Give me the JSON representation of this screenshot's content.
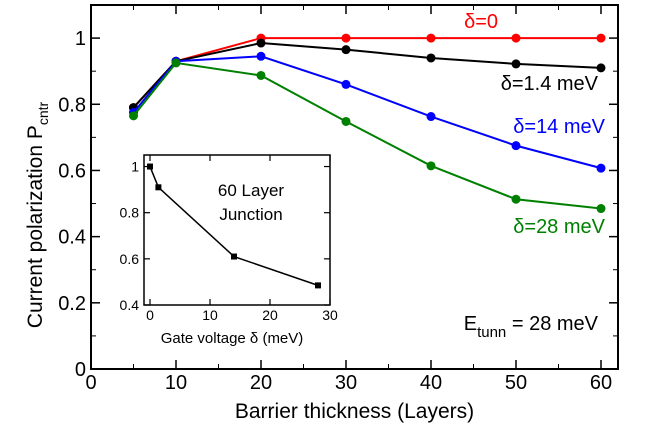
{
  "chart_data": [
    {
      "type": "line",
      "xlabel": "Barrier thickness (Layers)",
      "ylabel_main": "Current polarization  P",
      "ylabel_sub": "cntr",
      "xlim": [
        0,
        62
      ],
      "ylim": [
        0,
        1.1
      ],
      "x": [
        5,
        10,
        20,
        30,
        40,
        50,
        60
      ],
      "xticks": [
        "0",
        "10",
        "20",
        "30",
        "40",
        "50",
        "60"
      ],
      "yticks": [
        "0",
        "0.2",
        "0.4",
        "0.6",
        "0.8",
        "1"
      ],
      "grid": false,
      "series": [
        {
          "name": "δ=0",
          "color": "#ff0000",
          "values": [
            0.79,
            0.93,
            1.0,
            1.0,
            1.0,
            1.0,
            1.0
          ]
        },
        {
          "name": "δ=1.4 meV",
          "color": "#000000",
          "values": [
            0.79,
            0.93,
            0.985,
            0.965,
            0.94,
            0.922,
            0.91
          ]
        },
        {
          "name": "δ=14 meV",
          "color": "#0000ff",
          "values": [
            0.775,
            0.93,
            0.945,
            0.86,
            0.763,
            0.675,
            0.607
          ]
        },
        {
          "name": "δ=28 meV",
          "color": "#008000",
          "values": [
            0.765,
            0.925,
            0.887,
            0.748,
            0.614,
            0.513,
            0.485
          ]
        }
      ],
      "annotation_main": "E",
      "annotation_sub": "tunn",
      "annotation_rest": " = 28 meV"
    },
    {
      "type": "line",
      "xlabel": "Gate voltage δ (meV)",
      "ylabel": "",
      "xlim": [
        -1,
        30
      ],
      "ylim": [
        0.4,
        1.05
      ],
      "x": [
        0,
        1.4,
        14,
        28
      ],
      "xticks": [
        "0",
        "10",
        "20",
        "30"
      ],
      "yticks": [
        "0.4",
        "0.6",
        "0.8",
        "1"
      ],
      "series": [
        {
          "name": "",
          "color": "#000000",
          "values": [
            1.0,
            0.91,
            0.61,
            0.485
          ]
        }
      ],
      "annotation_line1": "60 Layer",
      "annotation_line2": "Junction"
    }
  ]
}
